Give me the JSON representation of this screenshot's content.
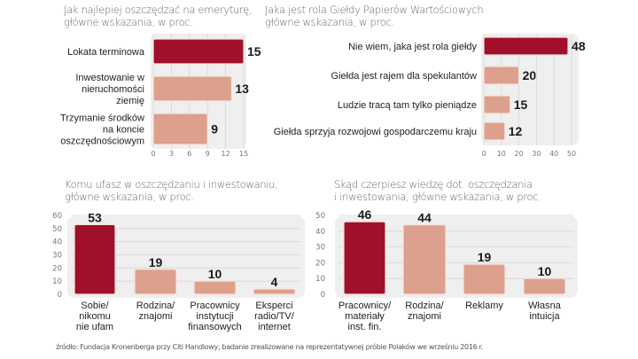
{
  "colors": {
    "highlight": "#a0102a",
    "normal": "#dca08c",
    "plot_bg": "#efefef",
    "grid": "#d6d6d6",
    "axis_text": "#777777",
    "label_text": "#222222",
    "value_text": "#1a1a1a"
  },
  "footer": "źródło: Fundacja Kronenberga przy Citi Handlowy, badanie zrealizowane na reprezentatywnej próbie Polaków we wrześniu 2016 r.",
  "chart_data": [
    {
      "id": "emerytura",
      "type": "bar",
      "orientation": "horizontal",
      "title_lines": [
        "Jak najlepiej oszczędzać na emeryturę,",
        "główne wskazania, w proc."
      ],
      "categories": [
        [
          "Lokata terminowa"
        ],
        [
          "Inwestowanie w",
          "nieruchomości",
          "ziemię"
        ],
        [
          "Trzymanie środków",
          "na koncie",
          "oszczędnościowym"
        ]
      ],
      "values": [
        15,
        13,
        9
      ],
      "highlight_index": 0,
      "xlim": [
        0,
        15
      ],
      "ticks": [
        0,
        3,
        6,
        9,
        12,
        15
      ],
      "grid": true
    },
    {
      "id": "gielda",
      "type": "bar",
      "orientation": "horizontal",
      "title_lines": [
        "Jaka jest rola Giełdy Papierów Wartościowych",
        "główne wskazania, w proc."
      ],
      "categories": [
        [
          "Nie wiem, jaka jest rola giełdy"
        ],
        [
          "Giełda jest rajem dla spekulantów"
        ],
        [
          "Ludzie tracą tam tylko pieniądze"
        ],
        [
          "Giełda sprzyja rozwojowi gospodarczemu kraju"
        ]
      ],
      "values": [
        48,
        20,
        15,
        12
      ],
      "highlight_index": 0,
      "xlim": [
        0,
        50
      ],
      "ticks": [
        0,
        10,
        20,
        30,
        40,
        50
      ],
      "grid": true
    },
    {
      "id": "zaufanie",
      "type": "bar",
      "orientation": "vertical",
      "title_lines": [
        "Komu ufasz w oszczędzaniu i inwestowaniu,",
        "główne wskazania, w proc."
      ],
      "categories": [
        [
          "Sobie/",
          "nikomu",
          "nie ufam"
        ],
        [
          "Rodzina/",
          "znajomi"
        ],
        [
          "Pracownicy",
          "instytucji",
          "finansowych"
        ],
        [
          "Eksperci",
          "radio/TV/",
          "internet"
        ]
      ],
      "values": [
        53,
        19,
        10,
        4
      ],
      "highlight_index": 0,
      "ylim": [
        0,
        60
      ],
      "ticks": [
        0,
        10,
        20,
        30,
        40,
        50,
        60
      ],
      "grid": true
    },
    {
      "id": "wiedza",
      "type": "bar",
      "orientation": "vertical",
      "title_lines": [
        "Skąd czerpiesz wiedzę dot. oszczędzania",
        "i inwestowania, główne wskazania, w proc."
      ],
      "categories": [
        [
          "Pracownicy/",
          "materiały",
          "inst. fin."
        ],
        [
          "Rodzina/",
          "znajomi"
        ],
        [
          "Reklamy"
        ],
        [
          "Własna",
          "intuicja"
        ]
      ],
      "values": [
        46,
        44,
        19,
        10
      ],
      "highlight_index": 0,
      "ylim": [
        0,
        50
      ],
      "ticks": [
        0,
        10,
        20,
        30,
        40,
        50
      ],
      "grid": true
    }
  ]
}
